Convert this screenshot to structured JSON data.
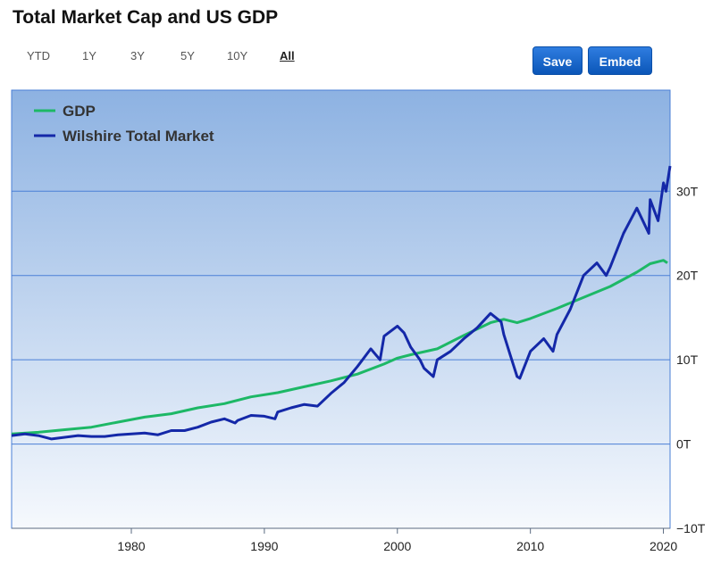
{
  "header": {
    "title": "Total Market Cap and US GDP"
  },
  "ranges": [
    {
      "label": "YTD",
      "active": false
    },
    {
      "label": "1Y",
      "active": false
    },
    {
      "label": "3Y",
      "active": false
    },
    {
      "label": "5Y",
      "active": false
    },
    {
      "label": "10Y",
      "active": false
    },
    {
      "label": "All",
      "active": true
    }
  ],
  "buttons": {
    "save_label": "Save",
    "embed_label": "Embed"
  },
  "colors": {
    "gdp": "#1db866",
    "market": "#1428a8",
    "grid": "#4a7fd6",
    "bg_top": "#8db2e2",
    "bg_bottom": "#f6f9fd",
    "button": "#0b56b8"
  },
  "chart_data": {
    "type": "line",
    "title": "Total Market Cap and US GDP",
    "xlabel": "",
    "ylabel": "",
    "xlim": [
      1971,
      2020.5
    ],
    "ylim": [
      -10,
      42
    ],
    "y_ticks": [
      {
        "value": -10,
        "label": "−10T"
      },
      {
        "value": 0,
        "label": "0T"
      },
      {
        "value": 10,
        "label": "10T"
      },
      {
        "value": 20,
        "label": "20T"
      },
      {
        "value": 30,
        "label": "30T"
      }
    ],
    "x_ticks": [
      {
        "value": 1980,
        "label": "1980"
      },
      {
        "value": 1990,
        "label": "1990"
      },
      {
        "value": 2000,
        "label": "2000"
      },
      {
        "value": 2010,
        "label": "2010"
      },
      {
        "value": 2020,
        "label": "2020"
      }
    ],
    "legend": {
      "position": "top-left"
    },
    "series": [
      {
        "name": "GDP",
        "key": "gdp",
        "x": [
          1971,
          1973,
          1975,
          1977,
          1979,
          1981,
          1983,
          1985,
          1987,
          1989,
          1991,
          1993,
          1995,
          1997,
          1999,
          2000,
          2001,
          2003,
          2005,
          2007,
          2008,
          2009,
          2010,
          2012,
          2014,
          2016,
          2018,
          2019,
          2020,
          2020.3
        ],
        "y": [
          1.2,
          1.4,
          1.7,
          2.0,
          2.6,
          3.2,
          3.6,
          4.3,
          4.8,
          5.6,
          6.1,
          6.8,
          7.5,
          8.3,
          9.5,
          10.2,
          10.6,
          11.3,
          12.9,
          14.4,
          14.8,
          14.4,
          14.9,
          16.1,
          17.4,
          18.7,
          20.4,
          21.4,
          21.8,
          21.5
        ]
      },
      {
        "name": "Wilshire Total Market",
        "key": "market",
        "x": [
          1971,
          1972,
          1973,
          1974,
          1975,
          1976,
          1977,
          1978,
          1979,
          1980,
          1981,
          1982,
          1983,
          1984,
          1985,
          1986,
          1987,
          1987.8,
          1988,
          1989,
          1990,
          1990.8,
          1991,
          1992,
          1993,
          1994,
          1995,
          1996,
          1997,
          1998,
          1998.7,
          1999,
          2000,
          2000.5,
          2001,
          2001.7,
          2002,
          2002.7,
          2003,
          2004,
          2005,
          2006,
          2007,
          2007.8,
          2008,
          2008.5,
          2009,
          2009.2,
          2010,
          2011,
          2011.7,
          2012,
          2013,
          2014,
          2015,
          2015.7,
          2016,
          2017,
          2018,
          2018.9,
          2019,
          2019.6,
          2020,
          2020.2,
          2020.5
        ],
        "y": [
          1.0,
          1.2,
          1.0,
          0.6,
          0.8,
          1.0,
          0.9,
          0.9,
          1.1,
          1.2,
          1.3,
          1.1,
          1.6,
          1.6,
          2.0,
          2.6,
          3.0,
          2.5,
          2.8,
          3.4,
          3.3,
          3.0,
          3.8,
          4.3,
          4.7,
          4.5,
          6.0,
          7.3,
          9.2,
          11.3,
          10.0,
          12.8,
          14.0,
          13.2,
          11.5,
          10.0,
          9.0,
          8.0,
          10.0,
          11.0,
          12.5,
          13.8,
          15.5,
          14.5,
          13.0,
          10.5,
          8.0,
          7.8,
          11.0,
          12.5,
          11.0,
          13.0,
          16.0,
          20.0,
          21.5,
          20.0,
          21.0,
          25.0,
          28.0,
          25.0,
          29.0,
          26.5,
          31.0,
          30.0,
          33.0
        ]
      }
    ]
  }
}
